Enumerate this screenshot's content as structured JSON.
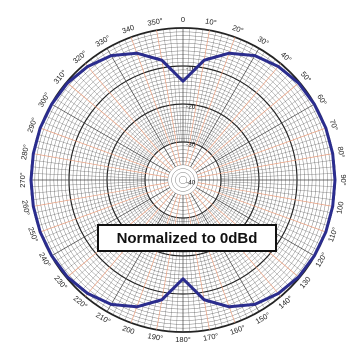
{
  "chart_data": {
    "type": "polar",
    "title": "",
    "zero_direction": "top",
    "angle_direction": "clockwise",
    "angle_tick_step_deg": 10,
    "angle_labels": [
      "0",
      "10°",
      "20°",
      "30°",
      "40°",
      "50°",
      "60°",
      "70°",
      "80°",
      "90°",
      "100",
      "110°",
      "120°",
      "130",
      "140°",
      "150°",
      "160°",
      "170°",
      "180°",
      "190°",
      "200",
      "210°",
      "220°",
      "230°",
      "240°",
      "250°",
      "260°",
      "270°",
      "280°",
      "290°",
      "300°",
      "310°",
      "320°",
      "330°",
      "340",
      "350°"
    ],
    "radial_axis": {
      "unit": "dB",
      "range": [
        -40,
        0
      ],
      "labels": [
        "-10",
        "-20",
        "-30",
        "-40"
      ],
      "label_values": [
        -10,
        -20,
        -30,
        -40
      ]
    },
    "grid": true,
    "colors": {
      "pattern": "#2b2d8e",
      "grid": "#444444",
      "accent_grid": "#e9a080"
    },
    "annotation": "Normalized to 0dBd",
    "series": [
      {
        "angle_deg": [
          0,
          10,
          20,
          30,
          40,
          50,
          60,
          70,
          80,
          90,
          100,
          110,
          120,
          130,
          140,
          150,
          160,
          170,
          180
        ],
        "gain_db": [
          -14,
          -8,
          -4.5,
          -2.2,
          -1,
          -0.3,
          -0.1,
          0,
          0,
          0,
          0,
          0,
          -0.1,
          -0.3,
          -1,
          -2.2,
          -4.5,
          -8,
          -14
        ],
        "symmetric": true
      }
    ]
  }
}
